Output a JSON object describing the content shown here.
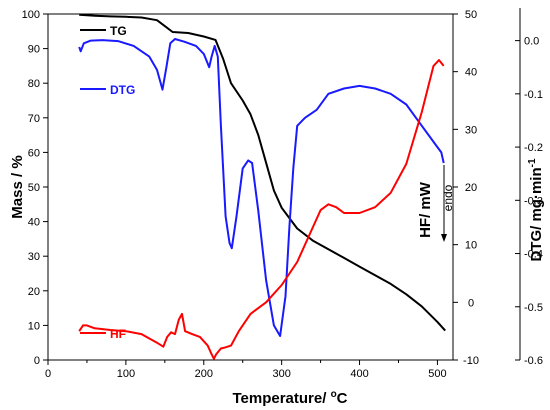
{
  "chart_data": {
    "type": "line",
    "title": "",
    "x_axis": {
      "label": "Temperature/ ",
      "label_unit": "C",
      "label_degree": "o",
      "range": [
        0,
        520
      ],
      "ticks": [
        "0",
        "100",
        "200",
        "300",
        "400",
        "500"
      ]
    },
    "y_left": {
      "label": "Mass / %",
      "range": [
        0,
        100
      ],
      "ticks": [
        "0",
        "10",
        "20",
        "30",
        "40",
        "50",
        "60",
        "70",
        "80",
        "90",
        "100"
      ]
    },
    "y_right_hf": {
      "range": [
        -10,
        50
      ],
      "ticks": [
        "-10",
        "0",
        "10",
        "20",
        "30",
        "40",
        "50"
      ]
    },
    "y_right_dtg": {
      "label": "DTG/ mg·min",
      "label_sup": "-1",
      "range": [
        -0.6,
        0.05
      ],
      "ticks": [
        "-0.6",
        "-0.5",
        "-0.4",
        "-0.3",
        "-0.2",
        "-0.1",
        "0.0"
      ]
    },
    "grid": false,
    "annotations": {
      "hf_label": "HF/ mW",
      "endo_label": "endo"
    },
    "series": [
      {
        "name": "TG",
        "axis": "left",
        "color": "#000000",
        "points": [
          [
            40,
            99.8
          ],
          [
            60,
            99.5
          ],
          [
            80,
            99.3
          ],
          [
            100,
            99.2
          ],
          [
            120,
            99.0
          ],
          [
            140,
            98.2
          ],
          [
            150,
            96.5
          ],
          [
            160,
            94.8
          ],
          [
            180,
            94.5
          ],
          [
            200,
            93.5
          ],
          [
            215,
            92.5
          ],
          [
            225,
            87
          ],
          [
            235,
            80
          ],
          [
            250,
            75
          ],
          [
            260,
            71
          ],
          [
            270,
            65
          ],
          [
            280,
            57
          ],
          [
            290,
            49
          ],
          [
            300,
            44
          ],
          [
            310,
            41
          ],
          [
            320,
            38
          ],
          [
            340,
            34.5
          ],
          [
            360,
            32
          ],
          [
            380,
            29.5
          ],
          [
            400,
            27
          ],
          [
            420,
            24.5
          ],
          [
            440,
            22
          ],
          [
            460,
            19
          ],
          [
            480,
            15.5
          ],
          [
            500,
            11
          ],
          [
            510,
            8.5
          ]
        ]
      },
      {
        "name": "DTG",
        "axis": "right_dtg",
        "color": "#1a1aff",
        "points": [
          [
            40,
            -0.012
          ],
          [
            42,
            -0.02
          ],
          [
            46,
            -0.005
          ],
          [
            55,
            0.0
          ],
          [
            70,
            0.001
          ],
          [
            90,
            -0.001
          ],
          [
            110,
            -0.01
          ],
          [
            130,
            -0.03
          ],
          [
            140,
            -0.055
          ],
          [
            147,
            -0.092
          ],
          [
            152,
            -0.05
          ],
          [
            157,
            -0.005
          ],
          [
            163,
            0.003
          ],
          [
            175,
            -0.002
          ],
          [
            190,
            -0.01
          ],
          [
            200,
            -0.025
          ],
          [
            207,
            -0.05
          ],
          [
            210,
            -0.03
          ],
          [
            214,
            -0.01
          ],
          [
            218,
            -0.03
          ],
          [
            222,
            -0.16
          ],
          [
            228,
            -0.33
          ],
          [
            233,
            -0.38
          ],
          [
            236,
            -0.39
          ],
          [
            242,
            -0.33
          ],
          [
            250,
            -0.24
          ],
          [
            257,
            -0.225
          ],
          [
            262,
            -0.23
          ],
          [
            270,
            -0.32
          ],
          [
            280,
            -0.45
          ],
          [
            290,
            -0.535
          ],
          [
            298,
            -0.555
          ],
          [
            305,
            -0.48
          ],
          [
            310,
            -0.35
          ],
          [
            315,
            -0.24
          ],
          [
            320,
            -0.16
          ],
          [
            330,
            -0.145
          ],
          [
            345,
            -0.13
          ],
          [
            360,
            -0.1
          ],
          [
            380,
            -0.09
          ],
          [
            400,
            -0.085
          ],
          [
            420,
            -0.09
          ],
          [
            440,
            -0.1
          ],
          [
            460,
            -0.12
          ],
          [
            480,
            -0.16
          ],
          [
            500,
            -0.2
          ],
          [
            505,
            -0.21
          ],
          [
            508,
            -0.23
          ]
        ]
      },
      {
        "name": "HF",
        "axis": "right_hf",
        "color": "#ff0000",
        "points": [
          [
            40,
            -5
          ],
          [
            45,
            -4
          ],
          [
            50,
            -4
          ],
          [
            60,
            -4.5
          ],
          [
            80,
            -4.8
          ],
          [
            100,
            -5
          ],
          [
            120,
            -5.5
          ],
          [
            140,
            -7
          ],
          [
            148,
            -7.7
          ],
          [
            153,
            -6
          ],
          [
            158,
            -5.2
          ],
          [
            163,
            -5.5
          ],
          [
            168,
            -3
          ],
          [
            172,
            -2
          ],
          [
            176,
            -5
          ],
          [
            185,
            -5.5
          ],
          [
            195,
            -6
          ],
          [
            205,
            -7.5
          ],
          [
            210,
            -9
          ],
          [
            213,
            -9.8
          ],
          [
            216,
            -9
          ],
          [
            222,
            -8
          ],
          [
            228,
            -7.8
          ],
          [
            235,
            -7.5
          ],
          [
            245,
            -5
          ],
          [
            260,
            -2
          ],
          [
            280,
            0
          ],
          [
            300,
            3
          ],
          [
            320,
            7
          ],
          [
            340,
            13
          ],
          [
            350,
            16
          ],
          [
            360,
            17
          ],
          [
            370,
            16.5
          ],
          [
            380,
            15.5
          ],
          [
            400,
            15.5
          ],
          [
            420,
            16.5
          ],
          [
            440,
            19
          ],
          [
            460,
            24
          ],
          [
            480,
            33
          ],
          [
            495,
            41
          ],
          [
            502,
            42
          ],
          [
            508,
            41
          ]
        ]
      }
    ]
  }
}
